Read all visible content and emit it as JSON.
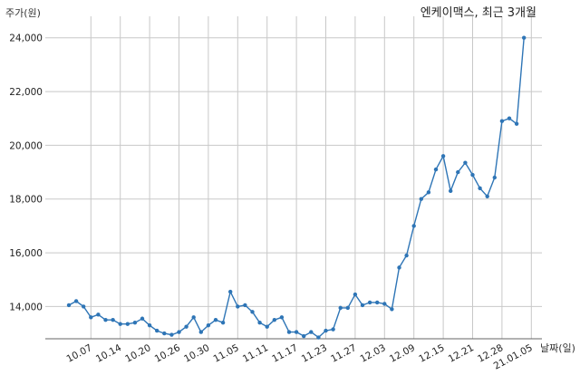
{
  "chart_data": {
    "type": "line",
    "title": "엔케이맥스, 최근 3개월",
    "ylabel": "주가(원)",
    "xlabel": "날짜(일)",
    "ylim": [
      12800,
      24800
    ],
    "yticks": [
      14000,
      16000,
      18000,
      20000,
      22000,
      24000
    ],
    "yticklabels": [
      "14,000",
      "16,000",
      "18,000",
      "20,000",
      "22,000",
      "24,000"
    ],
    "xtick_labels": [
      "10.07",
      "10.14",
      "10.20",
      "10.26",
      "10.30",
      "11.05",
      "11.11",
      "11.17",
      "11.23",
      "11.27",
      "12.03",
      "12.09",
      "12.15",
      "12.21",
      "12.28",
      "21.01.05"
    ],
    "xtick_positions": [
      3,
      7,
      11,
      15,
      19,
      23,
      27,
      31,
      35,
      39,
      43,
      47,
      51,
      55,
      59,
      63
    ],
    "grid": true,
    "series": [
      {
        "color": "#2e75b6",
        "values": [
          14050,
          14200,
          14000,
          13600,
          13700,
          13500,
          13500,
          13350,
          13350,
          13400,
          13550,
          13300,
          13100,
          13000,
          12950,
          13050,
          13250,
          13600,
          13050,
          13300,
          13500,
          13400,
          14550,
          14000,
          14050,
          13800,
          13400,
          13250,
          13500,
          13600,
          13050,
          13050,
          12900,
          13050,
          12850,
          13100,
          13150,
          13950,
          13950,
          14450,
          14050,
          14150,
          14150,
          14100,
          13900,
          15450,
          15900,
          17000,
          18000,
          18250,
          19100,
          19600,
          18300,
          19000,
          19350,
          18900,
          18400,
          18100,
          18800,
          20900,
          21000,
          20800,
          24000
        ]
      }
    ]
  }
}
